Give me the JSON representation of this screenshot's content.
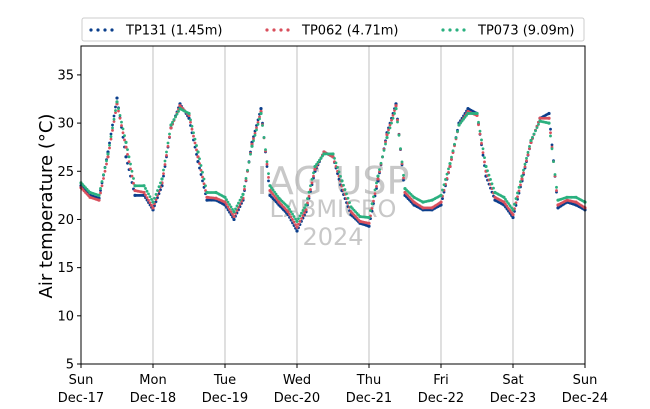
{
  "chart_data": {
    "type": "scatter",
    "title": "",
    "ylabel": "Air temperature (°C)",
    "xlabel": "",
    "ylim": [
      5,
      38
    ],
    "yticks": [
      5,
      10,
      15,
      20,
      25,
      30,
      35
    ],
    "xlim": [
      "2023-12-17",
      "2023-12-24"
    ],
    "xticks": [
      {
        "day": "Sun",
        "date": "Dec-17"
      },
      {
        "day": "Mon",
        "date": "Dec-18"
      },
      {
        "day": "Tue",
        "date": "Dec-19"
      },
      {
        "day": "Wed",
        "date": "Dec-20"
      },
      {
        "day": "Thu",
        "date": "Dec-21"
      },
      {
        "day": "Fri",
        "date": "Dec-22"
      },
      {
        "day": "Sat",
        "date": "Dec-23"
      },
      {
        "day": "Sun",
        "date": "Dec-24"
      }
    ],
    "grid": "vertical",
    "legend_position": "top",
    "watermark": [
      "IAG USP",
      "LABMICRO",
      "2024"
    ],
    "series": [
      {
        "name": "TP131 (1.45m)",
        "color": "#0b3f8c",
        "x": [
          "2023-12-17 00:00",
          "2023-12-17 03:00",
          "2023-12-17 06:00",
          "2023-12-17 09:00",
          "2023-12-17 12:00",
          "2023-12-17 15:00",
          "2023-12-17 18:00",
          "2023-12-17 21:00",
          "2023-12-18 00:00",
          "2023-12-18 03:00",
          "2023-12-18 06:00",
          "2023-12-18 09:00",
          "2023-12-18 12:00",
          "2023-12-18 15:00",
          "2023-12-18 18:00",
          "2023-12-18 21:00",
          "2023-12-19 00:00",
          "2023-12-19 03:00",
          "2023-12-19 06:00",
          "2023-12-19 09:00",
          "2023-12-19 12:00",
          "2023-12-19 15:00",
          "2023-12-19 18:00",
          "2023-12-19 21:00",
          "2023-12-20 00:00",
          "2023-12-20 03:00",
          "2023-12-20 06:00",
          "2023-12-20 09:00",
          "2023-12-20 12:00",
          "2023-12-20 15:00",
          "2023-12-20 18:00",
          "2023-12-20 21:00",
          "2023-12-21 00:00",
          "2023-12-21 03:00",
          "2023-12-21 06:00",
          "2023-12-21 09:00",
          "2023-12-21 12:00",
          "2023-12-21 15:00",
          "2023-12-21 18:00",
          "2023-12-21 21:00",
          "2023-12-22 00:00",
          "2023-12-22 03:00",
          "2023-12-22 06:00",
          "2023-12-22 09:00",
          "2023-12-22 12:00",
          "2023-12-22 15:00",
          "2023-12-22 18:00",
          "2023-12-22 21:00",
          "2023-12-23 00:00",
          "2023-12-23 03:00",
          "2023-12-23 06:00",
          "2023-12-23 09:00",
          "2023-12-23 12:00",
          "2023-12-23 15:00",
          "2023-12-23 18:00",
          "2023-12-23 21:00",
          "2023-12-24 00:00"
        ],
        "y": [
          23.5,
          22.5,
          22.2,
          27.0,
          32.6,
          26.5,
          22.5,
          22.5,
          21.0,
          23.5,
          29.5,
          32.0,
          30.5,
          26.0,
          22.0,
          22.0,
          21.5,
          20.0,
          22.0,
          28.0,
          31.5,
          22.5,
          21.5,
          20.5,
          18.8,
          20.8,
          25.0,
          27.0,
          26.5,
          23.0,
          20.5,
          19.6,
          19.3,
          24.0,
          29.0,
          32.0,
          22.5,
          21.5,
          21.0,
          21.0,
          21.5,
          25.5,
          30.0,
          31.5,
          31.0,
          24.5,
          22.0,
          21.5,
          20.2,
          24.0,
          28.0,
          30.5,
          31.0,
          21.2,
          21.8,
          21.5,
          21.0
        ]
      },
      {
        "name": "TP062 (4.71m)",
        "color": "#d94f5c",
        "x": [
          "2023-12-17 00:00",
          "2023-12-17 03:00",
          "2023-12-17 06:00",
          "2023-12-17 09:00",
          "2023-12-17 12:00",
          "2023-12-17 15:00",
          "2023-12-17 18:00",
          "2023-12-17 21:00",
          "2023-12-18 00:00",
          "2023-12-18 03:00",
          "2023-12-18 06:00",
          "2023-12-18 09:00",
          "2023-12-18 12:00",
          "2023-12-18 15:00",
          "2023-12-18 18:00",
          "2023-12-18 21:00",
          "2023-12-19 00:00",
          "2023-12-19 03:00",
          "2023-12-19 06:00",
          "2023-12-19 09:00",
          "2023-12-19 12:00",
          "2023-12-19 15:00",
          "2023-12-19 18:00",
          "2023-12-19 21:00",
          "2023-12-20 00:00",
          "2023-12-20 03:00",
          "2023-12-20 06:00",
          "2023-12-20 09:00",
          "2023-12-20 12:00",
          "2023-12-20 15:00",
          "2023-12-20 18:00",
          "2023-12-20 21:00",
          "2023-12-21 00:00",
          "2023-12-21 03:00",
          "2023-12-21 06:00",
          "2023-12-21 09:00",
          "2023-12-21 12:00",
          "2023-12-21 15:00",
          "2023-12-21 18:00",
          "2023-12-21 21:00",
          "2023-12-22 00:00",
          "2023-12-22 03:00",
          "2023-12-22 06:00",
          "2023-12-22 09:00",
          "2023-12-22 12:00",
          "2023-12-22 15:00",
          "2023-12-22 18:00",
          "2023-12-22 21:00",
          "2023-12-23 00:00",
          "2023-12-23 03:00",
          "2023-12-23 06:00",
          "2023-12-23 09:00",
          "2023-12-23 12:00",
          "2023-12-23 15:00",
          "2023-12-23 18:00",
          "2023-12-23 21:00",
          "2023-12-24 00:00"
        ],
        "y": [
          23.3,
          22.3,
          22.0,
          26.5,
          32.0,
          27.5,
          23.0,
          22.8,
          21.2,
          23.8,
          29.5,
          31.8,
          30.8,
          26.5,
          22.3,
          22.2,
          21.8,
          20.3,
          22.2,
          27.8,
          31.2,
          23.0,
          21.8,
          20.8,
          19.2,
          21.0,
          25.2,
          27.0,
          26.5,
          23.5,
          20.8,
          19.8,
          19.6,
          24.2,
          28.8,
          31.8,
          22.8,
          21.8,
          21.2,
          21.2,
          21.8,
          25.5,
          29.8,
          31.2,
          30.8,
          25.0,
          22.3,
          21.8,
          20.5,
          24.2,
          28.0,
          30.5,
          30.5,
          21.5,
          22.0,
          21.8,
          21.2
        ]
      },
      {
        "name": "TP073 (9.09m)",
        "color": "#2ab07f",
        "x": [
          "2023-12-17 00:00",
          "2023-12-17 03:00",
          "2023-12-17 06:00",
          "2023-12-17 09:00",
          "2023-12-17 12:00",
          "2023-12-17 15:00",
          "2023-12-17 18:00",
          "2023-12-17 21:00",
          "2023-12-18 00:00",
          "2023-12-18 03:00",
          "2023-12-18 06:00",
          "2023-12-18 09:00",
          "2023-12-18 12:00",
          "2023-12-18 15:00",
          "2023-12-18 18:00",
          "2023-12-18 21:00",
          "2023-12-19 00:00",
          "2023-12-19 03:00",
          "2023-12-19 06:00",
          "2023-12-19 09:00",
          "2023-12-19 12:00",
          "2023-12-19 15:00",
          "2023-12-19 18:00",
          "2023-12-19 21:00",
          "2023-12-20 00:00",
          "2023-12-20 03:00",
          "2023-12-20 06:00",
          "2023-12-20 09:00",
          "2023-12-20 12:00",
          "2023-12-20 15:00",
          "2023-12-20 18:00",
          "2023-12-20 21:00",
          "2023-12-21 00:00",
          "2023-12-21 03:00",
          "2023-12-21 06:00",
          "2023-12-21 09:00",
          "2023-12-21 12:00",
          "2023-12-21 15:00",
          "2023-12-21 18:00",
          "2023-12-21 21:00",
          "2023-12-22 00:00",
          "2023-12-22 03:00",
          "2023-12-22 06:00",
          "2023-12-22 09:00",
          "2023-12-22 12:00",
          "2023-12-22 15:00",
          "2023-12-22 18:00",
          "2023-12-22 21:00",
          "2023-12-23 00:00",
          "2023-12-23 03:00",
          "2023-12-23 06:00",
          "2023-12-23 09:00",
          "2023-12-23 12:00",
          "2023-12-23 15:00",
          "2023-12-23 18:00",
          "2023-12-23 21:00",
          "2023-12-24 00:00"
        ],
        "y": [
          23.8,
          22.8,
          22.5,
          26.8,
          32.2,
          28.0,
          23.5,
          23.5,
          21.8,
          24.2,
          29.8,
          31.5,
          31.0,
          27.0,
          22.8,
          22.8,
          22.3,
          20.8,
          22.6,
          27.6,
          31.0,
          23.5,
          22.2,
          21.3,
          19.8,
          21.5,
          25.5,
          26.8,
          26.8,
          24.0,
          21.3,
          20.3,
          20.2,
          24.5,
          28.5,
          31.5,
          23.2,
          22.3,
          21.8,
          22.0,
          22.5,
          25.8,
          29.8,
          31.0,
          31.0,
          25.5,
          22.8,
          22.3,
          21.0,
          24.5,
          28.2,
          30.2,
          30.0,
          22.0,
          22.3,
          22.3,
          21.8
        ]
      }
    ]
  }
}
